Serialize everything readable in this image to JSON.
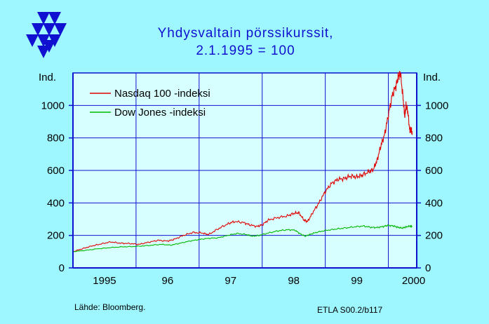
{
  "title_line1": "Yhdysvaltain  pörssikurssit,",
  "title_line2": "2.1.1995 = 100",
  "source_label": "Lähde: Bloomberg.",
  "code_label": "ETLA S00.2/b117",
  "colors": {
    "background": "#9ef7ff",
    "plot_area": "#d8ffff",
    "axis": "#1010d0",
    "nasdaq": "#e00000",
    "dow": "#00b800",
    "title": "#1010d0"
  },
  "logo_icon": "etla-triangles-logo",
  "chart_data": {
    "type": "line",
    "title": "Yhdysvaltain  pörssikurssit, 2.1.1995 = 100",
    "left_axis_unit": "Ind.",
    "right_axis_unit": "Ind.",
    "ylim": [
      0,
      1200
    ],
    "yticks": [
      0,
      200,
      400,
      600,
      800,
      1000
    ],
    "ytick_labels": [
      "0",
      "200",
      "400",
      "600",
      "800",
      "1000"
    ],
    "xlim": [
      1995.0,
      2000.45
    ],
    "xtick_labels": [
      {
        "x": 1995.5,
        "label": "1995"
      },
      {
        "x": 1996.5,
        "label": "96"
      },
      {
        "x": 1997.5,
        "label": "97"
      },
      {
        "x": 1998.5,
        "label": "98"
      },
      {
        "x": 1999.5,
        "label": "99"
      },
      {
        "x": 2000.4,
        "label": "2000"
      }
    ],
    "year_gridlines": [
      1996,
      1997,
      1998,
      1999,
      2000
    ],
    "grid": true,
    "legend_position": "top-left",
    "series": [
      {
        "name": "Nasdaq 100 -indeksi",
        "color": "#e00000",
        "points": [
          [
            1995.0,
            100
          ],
          [
            1995.15,
            118
          ],
          [
            1995.3,
            135
          ],
          [
            1995.45,
            148
          ],
          [
            1995.6,
            160
          ],
          [
            1995.75,
            152
          ],
          [
            1995.9,
            150
          ],
          [
            1996.05,
            145
          ],
          [
            1996.2,
            158
          ],
          [
            1996.35,
            170
          ],
          [
            1996.5,
            165
          ],
          [
            1996.6,
            175
          ],
          [
            1996.75,
            200
          ],
          [
            1996.9,
            218
          ],
          [
            1997.05,
            215
          ],
          [
            1997.15,
            205
          ],
          [
            1997.3,
            240
          ],
          [
            1997.45,
            270
          ],
          [
            1997.55,
            285
          ],
          [
            1997.7,
            280
          ],
          [
            1997.8,
            265
          ],
          [
            1997.92,
            255
          ],
          [
            1998.0,
            265
          ],
          [
            1998.1,
            295
          ],
          [
            1998.25,
            310
          ],
          [
            1998.4,
            320
          ],
          [
            1998.5,
            335
          ],
          [
            1998.58,
            340
          ],
          [
            1998.66,
            295
          ],
          [
            1998.72,
            285
          ],
          [
            1998.8,
            340
          ],
          [
            1998.9,
            400
          ],
          [
            1999.0,
            470
          ],
          [
            1999.1,
            520
          ],
          [
            1999.2,
            545
          ],
          [
            1999.3,
            550
          ],
          [
            1999.4,
            565
          ],
          [
            1999.5,
            560
          ],
          [
            1999.58,
            570
          ],
          [
            1999.68,
            590
          ],
          [
            1999.76,
            605
          ],
          [
            1999.82,
            660
          ],
          [
            1999.88,
            750
          ],
          [
            1999.94,
            820
          ],
          [
            2000.0,
            940
          ],
          [
            2000.06,
            1060
          ],
          [
            2000.12,
            1120
          ],
          [
            2000.16,
            1180
          ],
          [
            2000.19,
            1200
          ],
          [
            2000.23,
            1060
          ],
          [
            2000.26,
            930
          ],
          [
            2000.28,
            1000
          ],
          [
            2000.31,
            960
          ],
          [
            2000.34,
            840
          ],
          [
            2000.36,
            860
          ],
          [
            2000.38,
            820
          ]
        ]
      },
      {
        "name": "Dow Jones -indeksi",
        "color": "#00b800",
        "points": [
          [
            1995.0,
            100
          ],
          [
            1995.2,
            108
          ],
          [
            1995.4,
            118
          ],
          [
            1995.6,
            125
          ],
          [
            1995.8,
            130
          ],
          [
            1996.0,
            132
          ],
          [
            1996.2,
            138
          ],
          [
            1996.4,
            145
          ],
          [
            1996.55,
            140
          ],
          [
            1996.7,
            152
          ],
          [
            1996.85,
            165
          ],
          [
            1997.0,
            175
          ],
          [
            1997.15,
            182
          ],
          [
            1997.3,
            185
          ],
          [
            1997.45,
            200
          ],
          [
            1997.6,
            212
          ],
          [
            1997.75,
            205
          ],
          [
            1997.85,
            195
          ],
          [
            1997.95,
            200
          ],
          [
            1998.1,
            215
          ],
          [
            1998.25,
            228
          ],
          [
            1998.4,
            235
          ],
          [
            1998.52,
            232
          ],
          [
            1998.6,
            210
          ],
          [
            1998.68,
            195
          ],
          [
            1998.75,
            205
          ],
          [
            1998.85,
            218
          ],
          [
            1999.0,
            230
          ],
          [
            1999.15,
            238
          ],
          [
            1999.3,
            245
          ],
          [
            1999.45,
            252
          ],
          [
            1999.6,
            258
          ],
          [
            1999.72,
            250
          ],
          [
            1999.82,
            248
          ],
          [
            1999.92,
            255
          ],
          [
            2000.0,
            262
          ],
          [
            2000.08,
            258
          ],
          [
            2000.15,
            250
          ],
          [
            2000.22,
            245
          ],
          [
            2000.28,
            252
          ],
          [
            2000.35,
            258
          ],
          [
            2000.38,
            256
          ]
        ]
      }
    ]
  }
}
